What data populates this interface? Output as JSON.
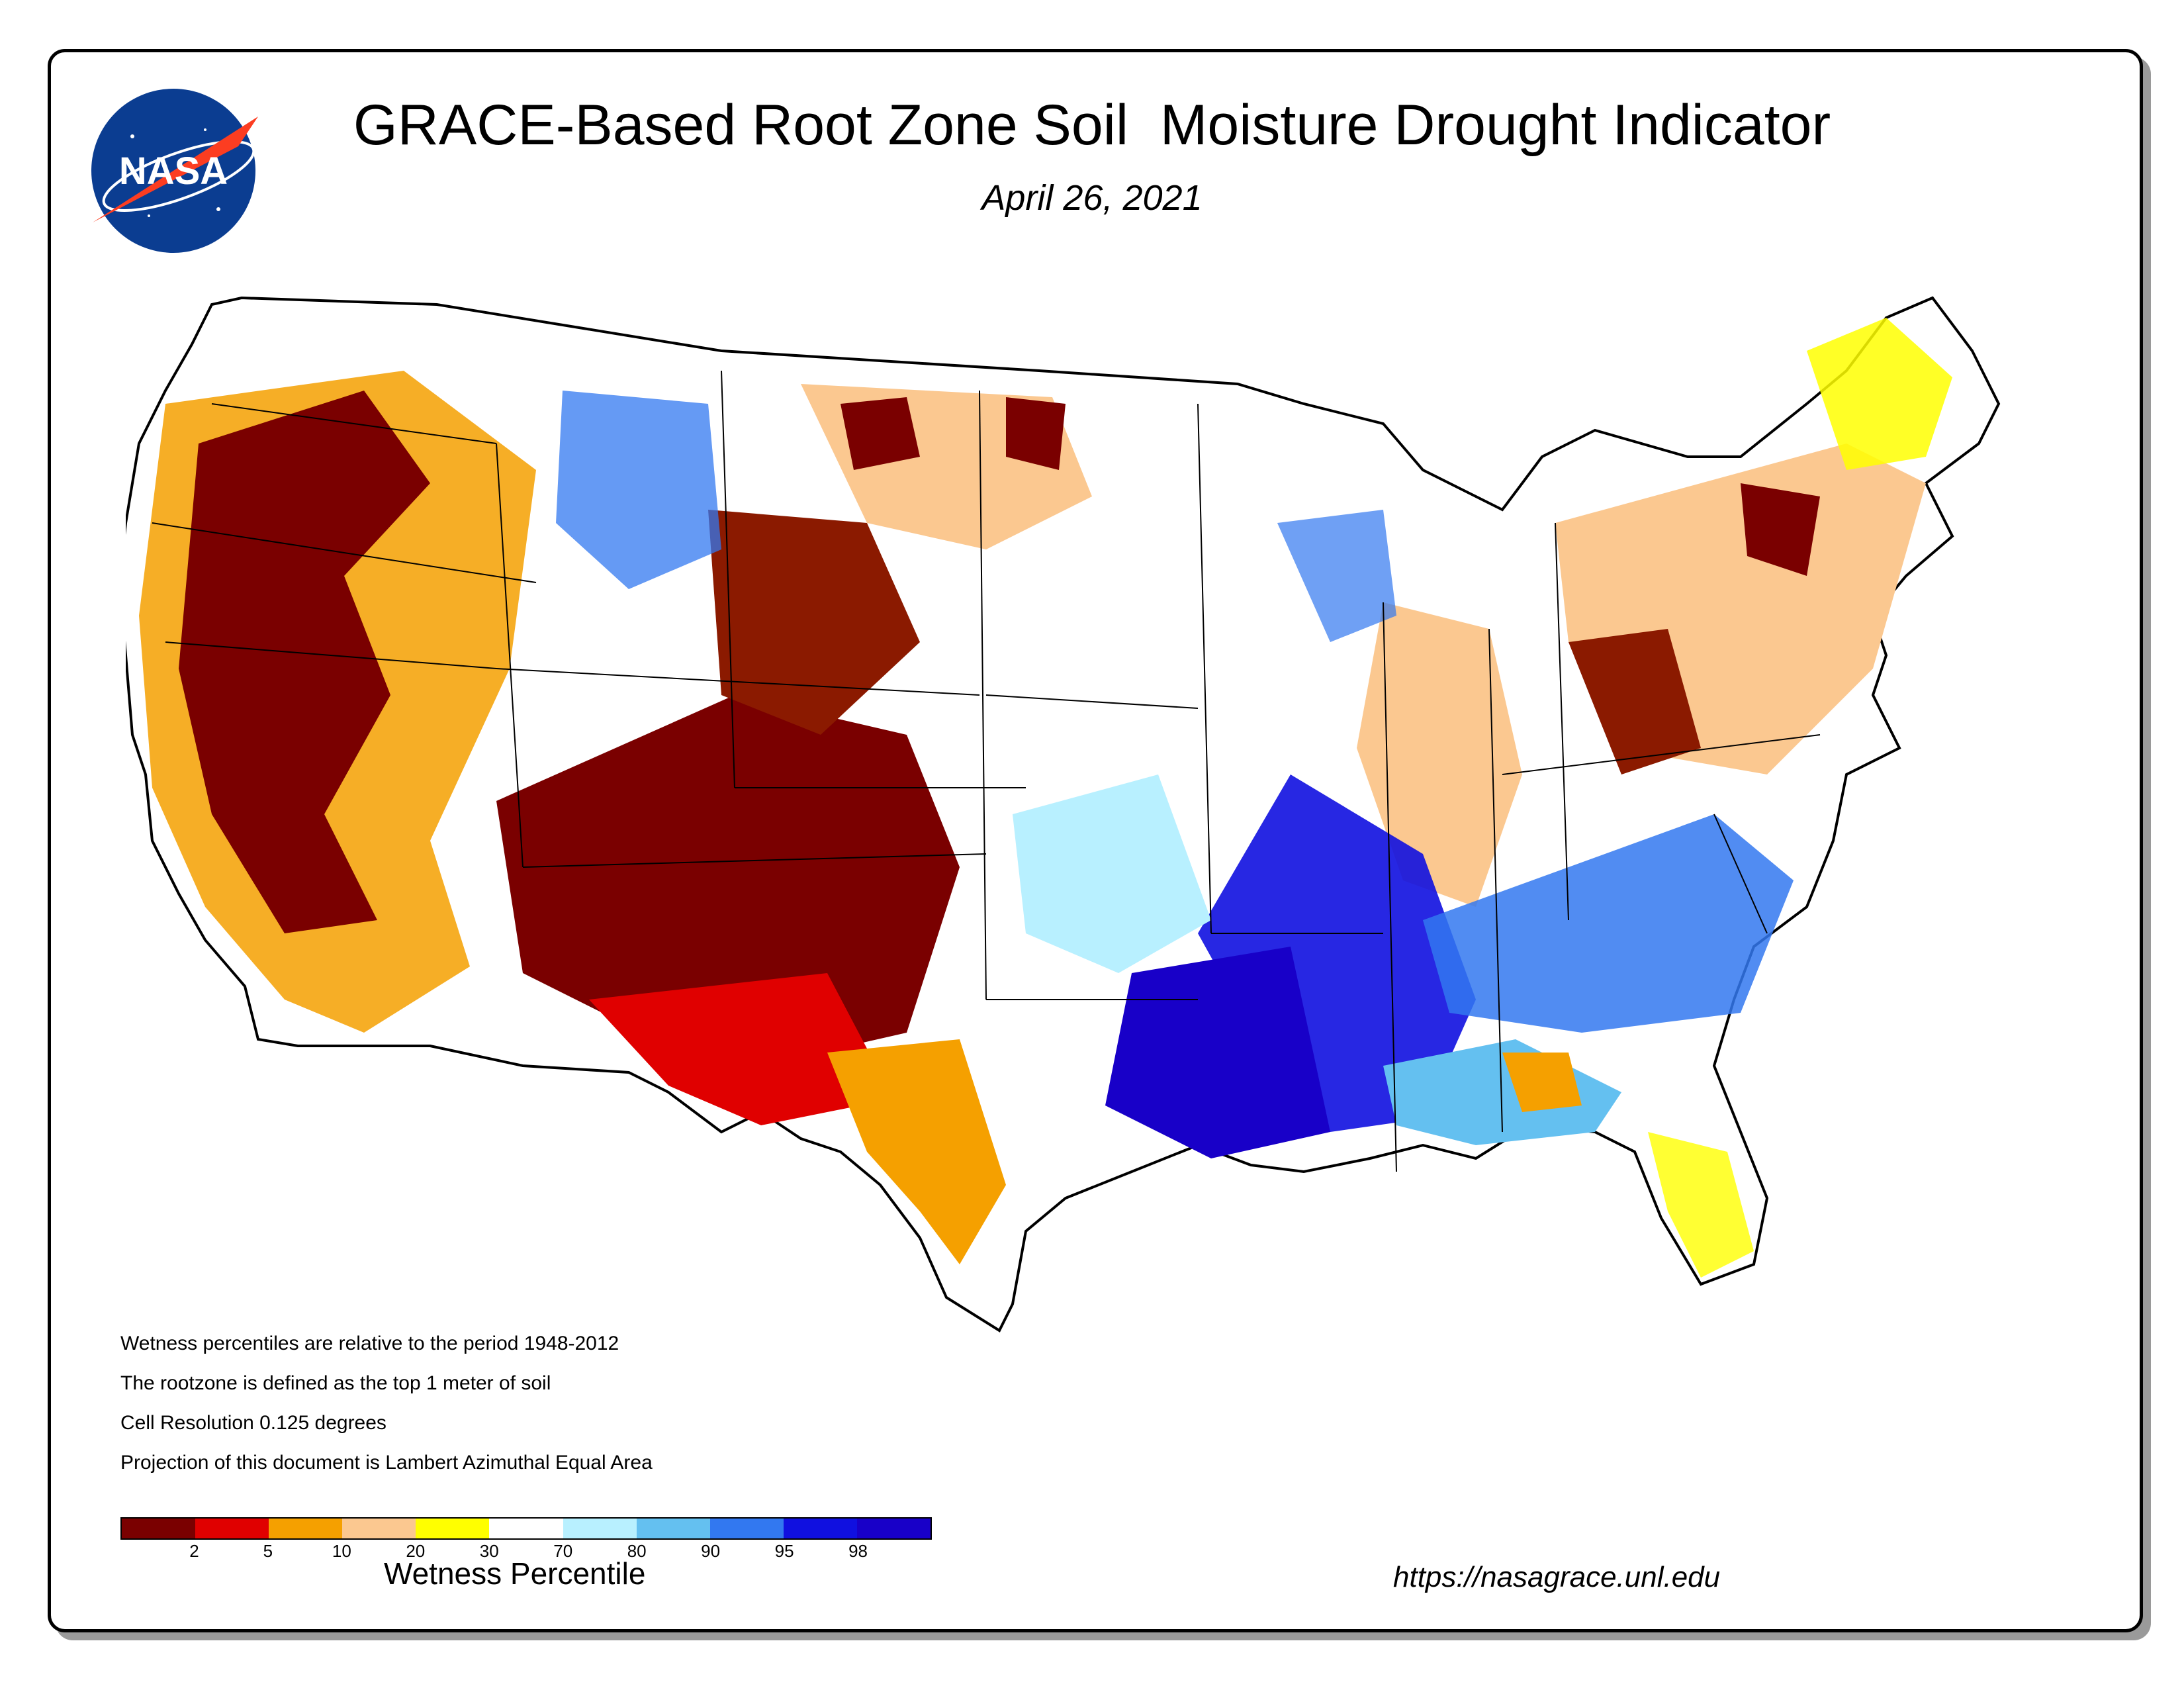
{
  "title": "GRACE-Based Root Zone Soil  Moisture Drought Indicator",
  "date": "April 26, 2021",
  "logo_text": "NASA",
  "notes": [
    "Wetness percentiles are relative to the period 1948-2012",
    "The rootzone is defined as the top 1 meter of soil",
    "Cell Resolution 0.125 degrees",
    "Projection of this document is Lambert Azimuthal Equal Area"
  ],
  "legend": {
    "title": "Wetness Percentile",
    "colors": [
      "#7a0000",
      "#e00000",
      "#f5a000",
      "#fbc890",
      "#ffff00",
      "#ffffff",
      "#b8f0ff",
      "#64c0f0",
      "#3278f0",
      "#1010e0",
      "#1800c8"
    ],
    "tick_labels": [
      "2",
      "5",
      "10",
      "20",
      "30",
      "70",
      "80",
      "90",
      "95",
      "98"
    ]
  },
  "url": "https://nasagrace.unl.edu"
}
